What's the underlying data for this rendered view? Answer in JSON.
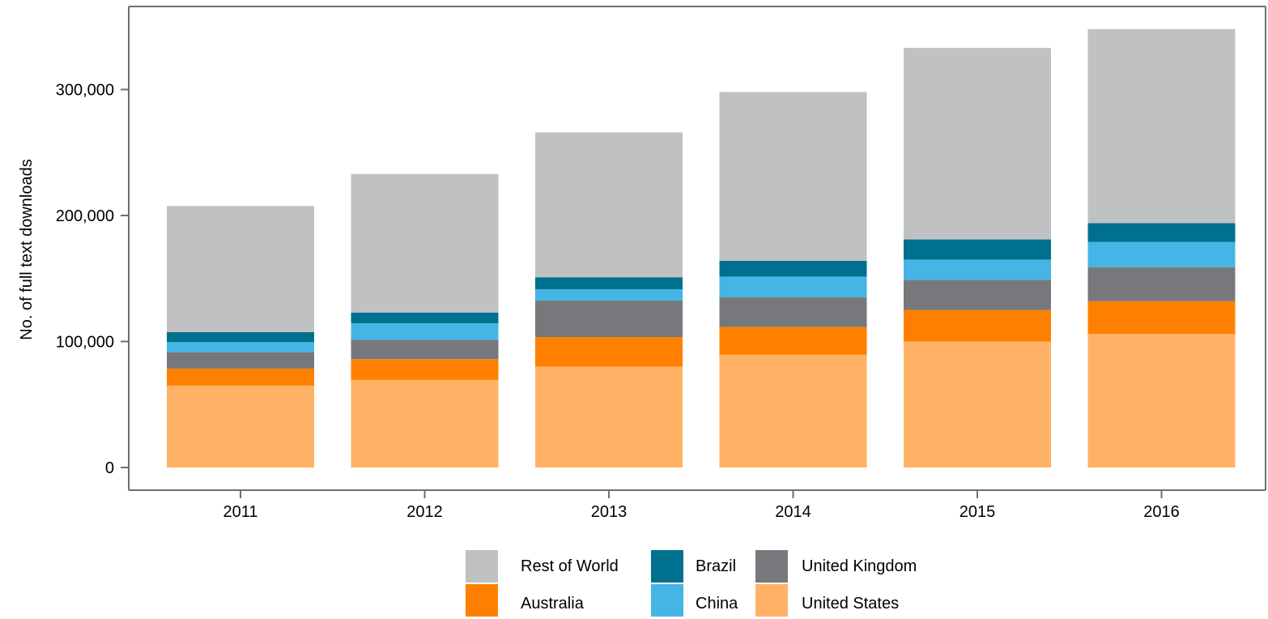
{
  "chart_data": {
    "type": "bar",
    "stacked": true,
    "title": "",
    "xlabel": "",
    "ylabel": "No. of full text downloads",
    "ylim": [
      0,
      350000
    ],
    "y_ticks": [
      0,
      100000,
      200000,
      300000
    ],
    "y_tick_labels": [
      "0",
      "100,000",
      "200,000",
      "300,000"
    ],
    "categories": [
      "2011",
      "2012",
      "2013",
      "2014",
      "2015",
      "2016"
    ],
    "grid": false,
    "legend_position": "bottom",
    "series": [
      {
        "name": "United States",
        "color": "#FFB266",
        "values": [
          65000,
          69500,
          80000,
          89500,
          100000,
          106000
        ]
      },
      {
        "name": "Australia",
        "color": "#FF8000",
        "values": [
          13500,
          16500,
          23500,
          22000,
          25000,
          26000
        ]
      },
      {
        "name": "United Kingdom",
        "color": "#76787B",
        "values": [
          13000,
          15500,
          29000,
          23500,
          24000,
          27000
        ]
      },
      {
        "name": "China",
        "color": "#45B5E6",
        "values": [
          8000,
          13000,
          9000,
          16500,
          16000,
          20000
        ]
      },
      {
        "name": "Brazil",
        "color": "#00708F",
        "values": [
          8000,
          8500,
          9500,
          12500,
          16000,
          15000
        ]
      },
      {
        "name": "Rest of World",
        "color": "#C0C1C3",
        "values": [
          100000,
          110000,
          115000,
          134000,
          152000,
          154000
        ]
      }
    ],
    "legend_order": [
      "Rest of World",
      "Brazil",
      "United Kingdom",
      "Australia",
      "China",
      "United States"
    ]
  }
}
